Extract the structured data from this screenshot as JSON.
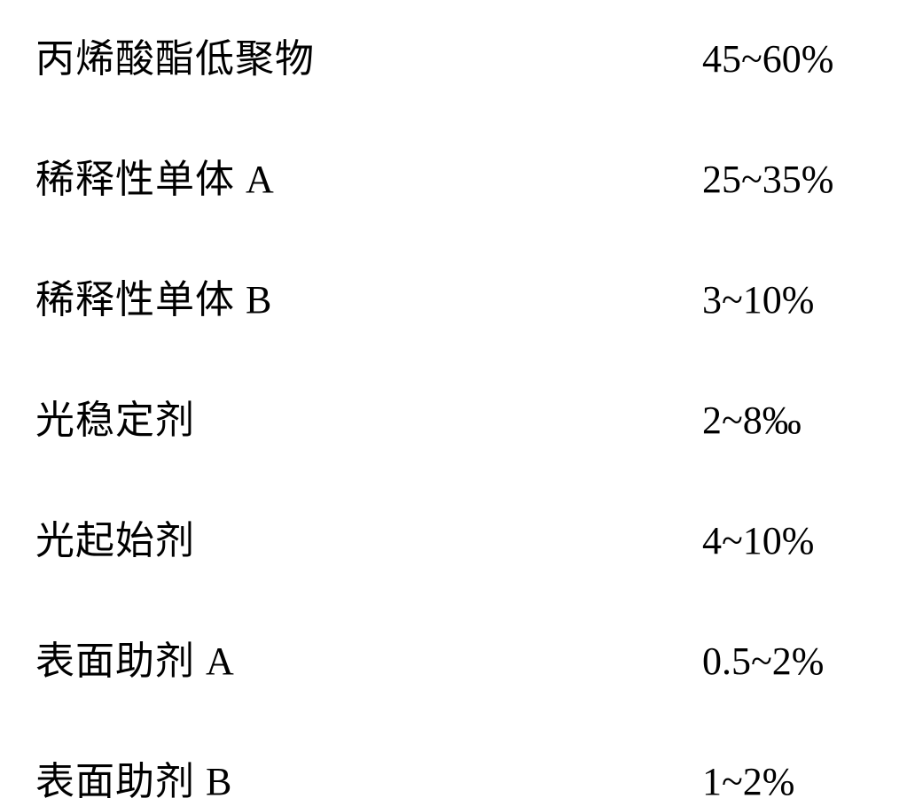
{
  "composition": {
    "rows": [
      {
        "name": "丙烯酸酯低聚物",
        "latin": "",
        "value": "45~60%"
      },
      {
        "name": "稀释性单体",
        "latin": " A",
        "value": "25~35%"
      },
      {
        "name": "稀释性单体",
        "latin": " B",
        "value": "3~10%"
      },
      {
        "name": "光稳定剂",
        "latin": "",
        "value": "2~8‰"
      },
      {
        "name": "光起始剂",
        "latin": "",
        "value": "4~10%"
      },
      {
        "name": "表面助剂",
        "latin": " A",
        "value": "0.5~2%"
      },
      {
        "name": "表面助剂",
        "latin": " B",
        "value": "1~2%"
      }
    ]
  },
  "styling": {
    "background_color": "#ffffff",
    "text_color": "#000000",
    "font_size": 44,
    "row_gap": 72,
    "font_family_cjk": "SimSun",
    "font_family_latin": "Times New Roman"
  }
}
